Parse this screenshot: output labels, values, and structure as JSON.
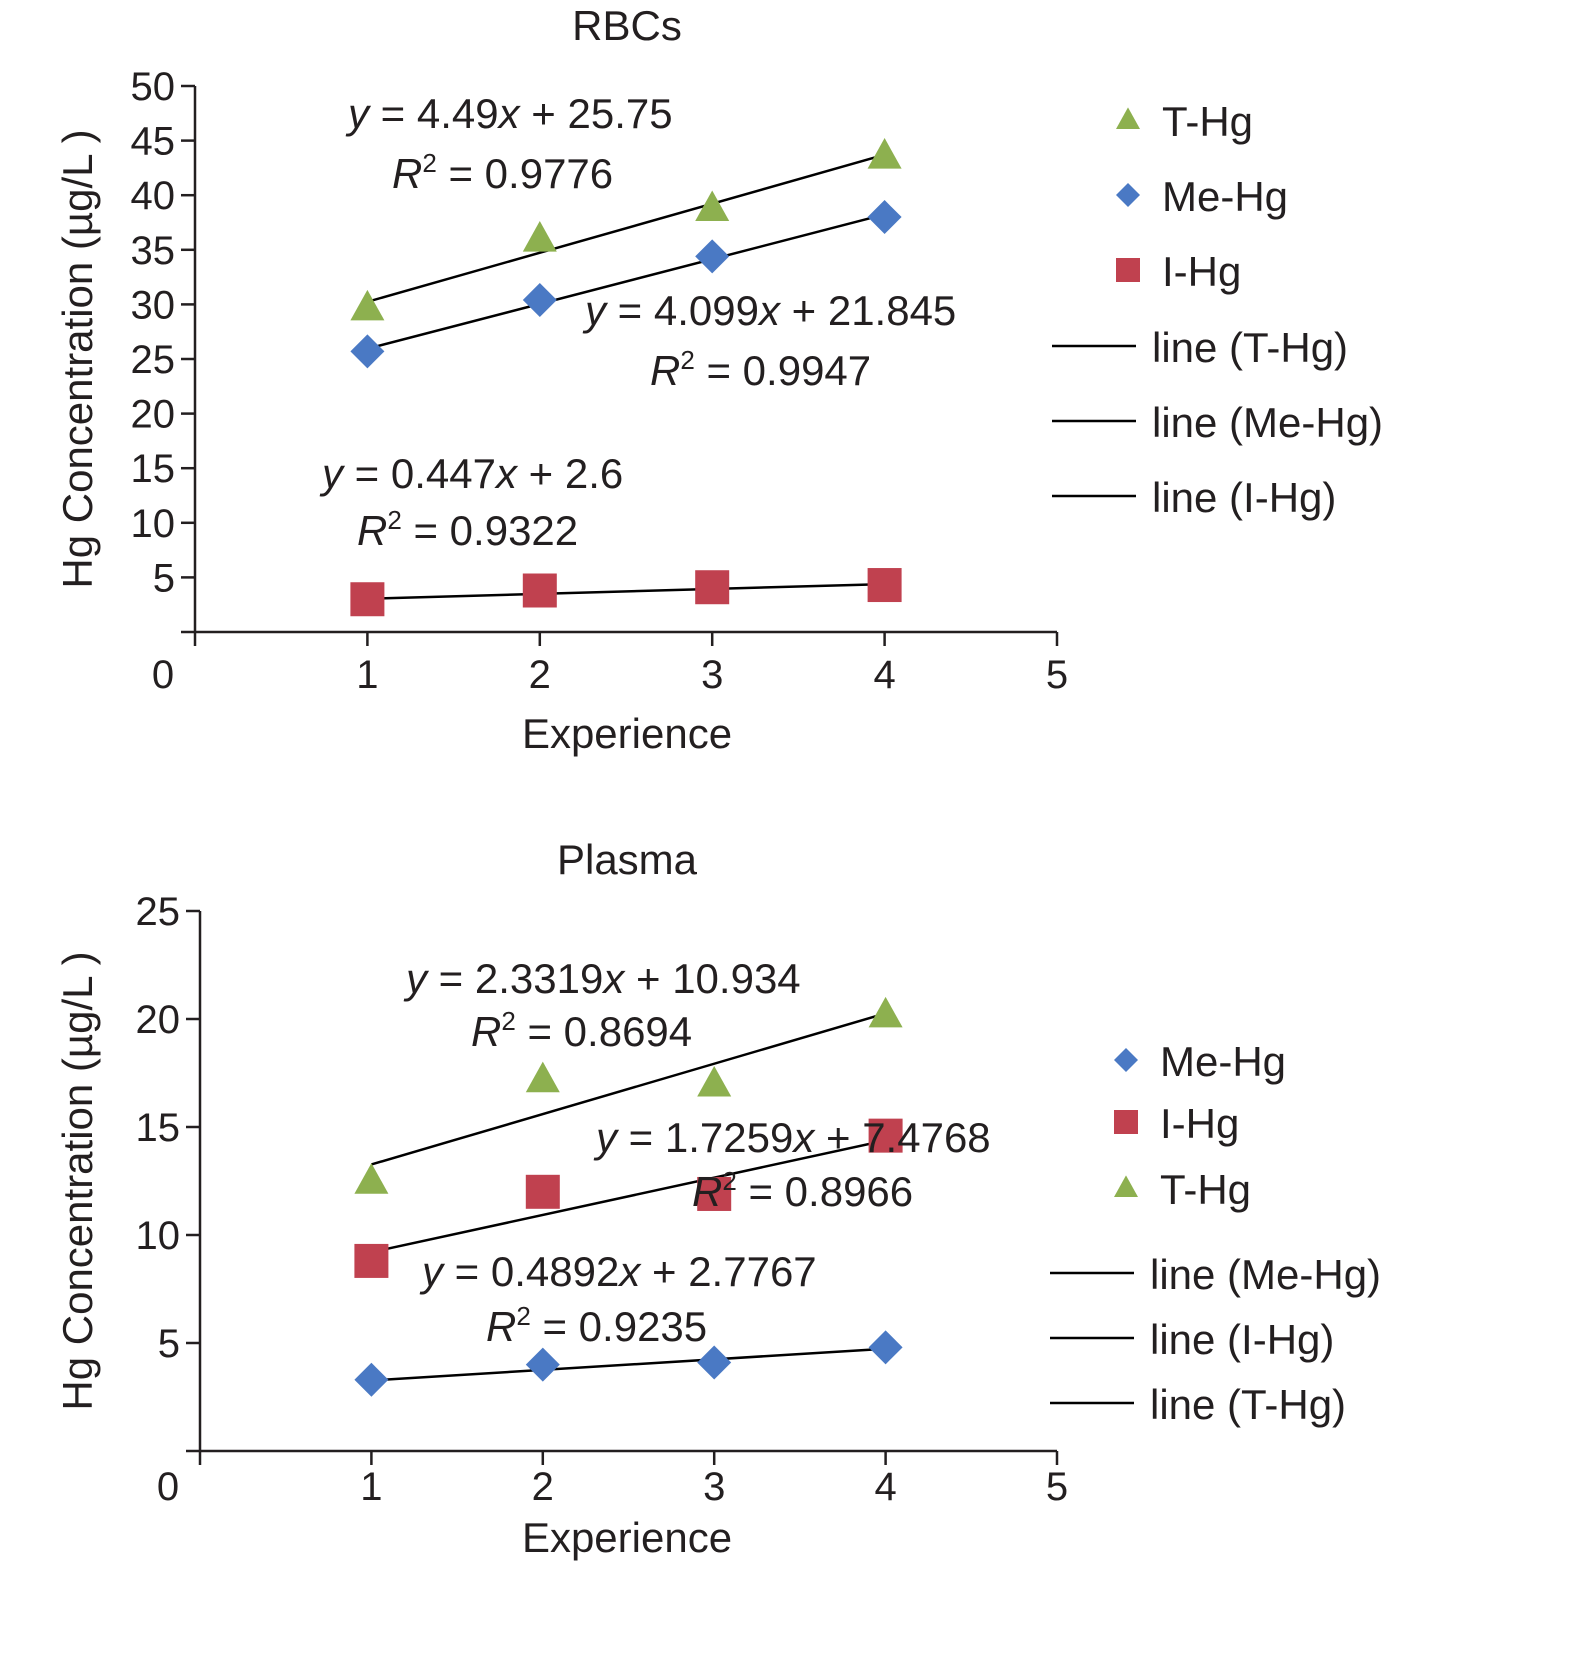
{
  "colors": {
    "T-Hg": "#8db04f",
    "Me-Hg": "#4a79c4",
    "I-Hg": "#c0414f",
    "line": "#000000",
    "axis": "#231f20"
  },
  "chart_data": [
    {
      "type": "scatter",
      "title": "RBCs",
      "xlabel": "Experience",
      "ylabel": "Hg Concentration (µg/L )",
      "xlim": [
        0,
        5
      ],
      "ylim": [
        0,
        50
      ],
      "x_ticks": [
        0,
        1,
        2,
        3,
        4,
        5
      ],
      "y_ticks": [
        5,
        10,
        15,
        20,
        25,
        30,
        35,
        40,
        45,
        50
      ],
      "series": [
        {
          "name": "T-Hg",
          "marker": "triangle",
          "x": [
            1,
            2,
            3,
            4
          ],
          "y": [
            29.7,
            36.0,
            38.8,
            43.6
          ]
        },
        {
          "name": "Me-Hg",
          "marker": "diamond",
          "x": [
            1,
            2,
            3,
            4
          ],
          "y": [
            25.7,
            30.4,
            34.4,
            38.0
          ]
        },
        {
          "name": "I-Hg",
          "marker": "square",
          "x": [
            1,
            2,
            3,
            4
          ],
          "y": [
            3.0,
            3.8,
            4.1,
            4.3
          ]
        }
      ],
      "trendlines": [
        {
          "name": "line (T-Hg)",
          "series": "T-Hg",
          "slope": 4.49,
          "intercept": 25.75,
          "x_range": [
            1,
            4
          ],
          "equation": "= 4.49x + 25.75",
          "r2": "= 0.9776"
        },
        {
          "name": "line (Me-Hg)",
          "series": "Me-Hg",
          "slope": 4.099,
          "intercept": 21.845,
          "x_range": [
            1,
            4
          ],
          "equation": "= 4.099x + 21.845",
          "r2": "= 0.9947"
        },
        {
          "name": "line (I-Hg)",
          "series": "I-Hg",
          "slope": 0.447,
          "intercept": 2.6,
          "x_range": [
            1,
            4
          ],
          "equation": "= 0.447x + 2.6",
          "r2": "= 0.9322"
        }
      ],
      "legend": [
        "T-Hg",
        "Me-Hg",
        "I-Hg",
        "line (T-Hg)",
        "line (Me-Hg)",
        "line (I-Hg)"
      ]
    },
    {
      "type": "scatter",
      "title": "Plasma",
      "xlabel": "Experience",
      "ylabel": "Hg Concentration (µg/L )",
      "xlim": [
        0,
        5
      ],
      "ylim": [
        0,
        25
      ],
      "x_ticks": [
        0,
        1,
        2,
        3,
        4,
        5
      ],
      "y_ticks": [
        5,
        10,
        15,
        20,
        25
      ],
      "series": [
        {
          "name": "Me-Hg",
          "marker": "diamond",
          "x": [
            1,
            2,
            3,
            4
          ],
          "y": [
            3.3,
            4.0,
            4.1,
            4.8
          ]
        },
        {
          "name": "I-Hg",
          "marker": "square",
          "x": [
            1,
            2,
            3,
            4
          ],
          "y": [
            8.8,
            12.0,
            11.9,
            14.6
          ]
        },
        {
          "name": "T-Hg",
          "marker": "triangle",
          "x": [
            1,
            2,
            3,
            4
          ],
          "y": [
            12.5,
            17.2,
            17.0,
            20.2
          ]
        }
      ],
      "trendlines": [
        {
          "name": "line (T-Hg)",
          "series": "T-Hg",
          "slope": 2.3319,
          "intercept": 10.934,
          "x_range": [
            1,
            4
          ],
          "equation": "= 2.3319x + 10.934",
          "r2": "= 0.8694"
        },
        {
          "name": "line (I-Hg)",
          "series": "I-Hg",
          "slope": 1.7259,
          "intercept": 7.4768,
          "x_range": [
            1,
            4
          ],
          "equation": "= 1.7259x + 7.4768",
          "r2": "= 0.8966"
        },
        {
          "name": "line (Me-Hg)",
          "series": "Me-Hg",
          "slope": 0.4892,
          "intercept": 2.7767,
          "x_range": [
            1,
            4
          ],
          "equation": "= 0.4892x + 2.7767",
          "r2": "= 0.9235"
        }
      ],
      "legend": [
        "Me-Hg",
        "I-Hg",
        "T-Hg",
        "line (Me-Hg)",
        "line (I-Hg)",
        "line (T-Hg)"
      ]
    }
  ]
}
